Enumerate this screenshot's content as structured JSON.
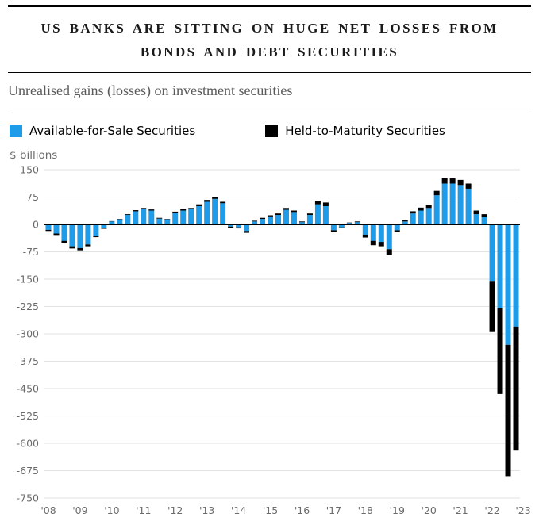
{
  "header": {
    "title": "US BANKS ARE SITTING ON HUGE NET LOSSES FROM BONDS AND DEBT SECURITIES",
    "subtitle": "Unrealised gains (losses) on investment securities"
  },
  "chart_data": {
    "type": "bar",
    "stacked": true,
    "title": "Unrealised gains (losses) on investment securities",
    "unit": "$ billions",
    "ylabel": "$ billions",
    "ylim": [
      -750,
      150
    ],
    "ytick_interval": 75,
    "grid": true,
    "legend_position": "top-left",
    "x_tick_labels": [
      "'08",
      "'09",
      "'10",
      "'11",
      "'12",
      "'13",
      "'14",
      "'15",
      "'16",
      "'17",
      "'18",
      "'19",
      "'20",
      "'21",
      "'22",
      "'23"
    ],
    "categories": [
      "2008 Q1",
      "2008 Q2",
      "2008 Q3",
      "2008 Q4",
      "2009 Q1",
      "2009 Q2",
      "2009 Q3",
      "2009 Q4",
      "2010 Q1",
      "2010 Q2",
      "2010 Q3",
      "2010 Q4",
      "2011 Q1",
      "2011 Q2",
      "2011 Q3",
      "2011 Q4",
      "2012 Q1",
      "2012 Q2",
      "2012 Q3",
      "2012 Q4",
      "2013 Q1",
      "2013 Q2",
      "2013 Q3",
      "2013 Q4",
      "2014 Q1",
      "2014 Q2",
      "2014 Q3",
      "2014 Q4",
      "2015 Q1",
      "2015 Q2",
      "2015 Q3",
      "2015 Q4",
      "2016 Q1",
      "2016 Q2",
      "2016 Q3",
      "2016 Q4",
      "2017 Q1",
      "2017 Q2",
      "2017 Q3",
      "2017 Q4",
      "2018 Q1",
      "2018 Q2",
      "2018 Q3",
      "2018 Q4",
      "2019 Q1",
      "2019 Q2",
      "2019 Q3",
      "2019 Q4",
      "2020 Q1",
      "2020 Q2",
      "2020 Q3",
      "2020 Q4",
      "2021 Q1",
      "2021 Q2",
      "2021 Q3",
      "2021 Q4",
      "2022 Q1",
      "2022 Q2",
      "2022 Q3",
      "2022 Q4"
    ],
    "series": [
      {
        "name": "Available-for-Sale Securities",
        "color": "#1e9ce9",
        "values": [
          -15,
          -25,
          -45,
          -60,
          -65,
          -55,
          -32,
          -10,
          8,
          14,
          26,
          36,
          42,
          38,
          16,
          14,
          32,
          38,
          42,
          50,
          62,
          70,
          58,
          -6,
          -8,
          -18,
          8,
          15,
          22,
          26,
          40,
          34,
          6,
          26,
          55,
          50,
          -16,
          -8,
          4,
          6,
          -28,
          -45,
          -48,
          -68,
          -16,
          8,
          30,
          38,
          45,
          80,
          112,
          112,
          108,
          98,
          28,
          20,
          -155,
          -230,
          -330,
          -280
        ]
      },
      {
        "name": "Held-to-Maturity Securities",
        "color": "#000000",
        "values": [
          -3,
          -4,
          -5,
          -6,
          -6,
          -5,
          -3,
          -2,
          1,
          1,
          2,
          3,
          3,
          3,
          2,
          1,
          3,
          4,
          3,
          5,
          5,
          6,
          4,
          -3,
          -3,
          -5,
          2,
          3,
          3,
          4,
          5,
          4,
          2,
          4,
          10,
          10,
          -4,
          -2,
          1,
          2,
          -8,
          -12,
          -12,
          -16,
          -5,
          3,
          6,
          8,
          8,
          12,
          16,
          14,
          14,
          14,
          10,
          8,
          -140,
          -235,
          -360,
          -340
        ]
      }
    ]
  }
}
